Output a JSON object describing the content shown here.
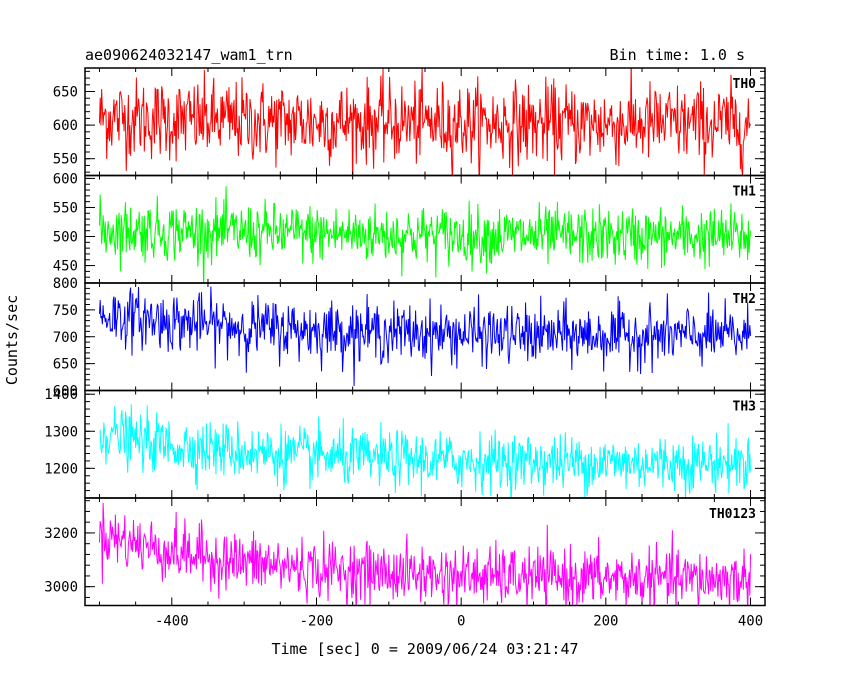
{
  "chart_data": {
    "type": "line",
    "title_left": "ae090624032147_wam1_trn",
    "title_right": "Bin time: 1.0 s",
    "xlabel": "Time [sec] 0 = 2009/06/24 03:21:47",
    "ylabel": "Counts/sec",
    "xlim": [
      -520,
      420
    ],
    "xdata_range": [
      -500,
      400
    ],
    "xticks": [
      -400,
      -200,
      0,
      200,
      400
    ],
    "grid": false,
    "panels": [
      {
        "label": "TH0",
        "color": "#ff0000",
        "ylim": [
          525,
          685
        ],
        "yticks": [
          550,
          600,
          650
        ],
        "trend": {
          "x": [
            -500,
            -450,
            -400,
            -300,
            -200,
            -100,
            0,
            100,
            200,
            300,
            400
          ],
          "y": [
            612,
            610,
            608,
            606,
            605,
            604,
            603,
            602,
            602,
            602,
            601
          ]
        },
        "noise_sd": 30
      },
      {
        "label": "TH1",
        "color": "#00ff00",
        "ylim": [
          420,
          605
        ],
        "yticks": [
          450,
          500,
          550,
          600
        ],
        "trend": {
          "x": [
            -500,
            -400,
            -300,
            -200,
            -100,
            0,
            100,
            200,
            300,
            400
          ],
          "y": [
            512,
            510,
            507,
            505,
            503,
            502,
            501,
            500,
            500,
            500
          ]
        },
        "noise_sd": 25
      },
      {
        "label": "TH2",
        "color": "#0000ff",
        "ylim": [
          600,
          800
        ],
        "yticks": [
          600,
          650,
          700,
          750,
          800
        ],
        "trend": {
          "x": [
            -500,
            -450,
            -400,
            -300,
            -200,
            -100,
            0,
            100,
            200,
            300,
            400
          ],
          "y": [
            740,
            735,
            728,
            718,
            712,
            708,
            705,
            703,
            702,
            702,
            702
          ]
        },
        "noise_sd": 27
      },
      {
        "label": "TH3",
        "color": "#00ffff",
        "ylim": [
          1120,
          1410
        ],
        "yticks": [
          1200,
          1300,
          1400
        ],
        "trend": {
          "x": [
            -500,
            -450,
            -400,
            -300,
            -200,
            -100,
            0,
            100,
            200,
            300,
            400
          ],
          "y": [
            1300,
            1275,
            1262,
            1245,
            1232,
            1225,
            1220,
            1218,
            1216,
            1215,
            1214
          ]
        },
        "noise_sd": 38
      },
      {
        "label": "TH0123",
        "color": "#ff00ff",
        "ylim": [
          2930,
          3330
        ],
        "yticks": [
          3000,
          3200
        ],
        "trend": {
          "x": [
            -500,
            -450,
            -400,
            -300,
            -200,
            -100,
            0,
            100,
            200,
            300,
            400
          ],
          "y": [
            3200,
            3160,
            3130,
            3090,
            3065,
            3050,
            3040,
            3035,
            3030,
            3028,
            3025
          ]
        },
        "noise_sd": 55
      }
    ]
  }
}
